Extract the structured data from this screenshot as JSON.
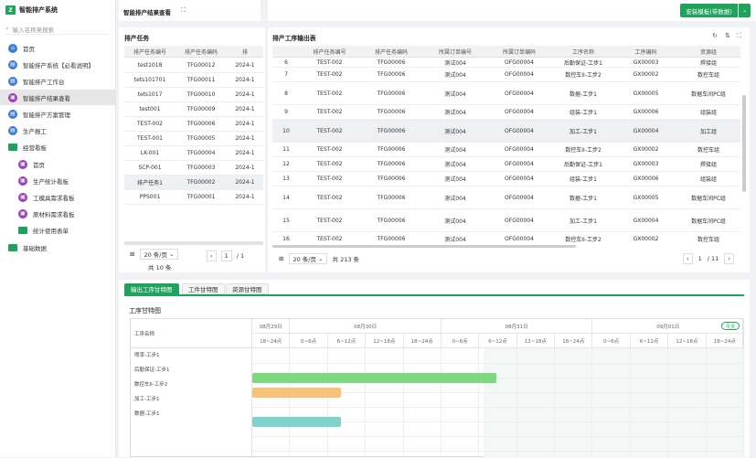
{
  "app": {
    "title": "智能排产系统"
  },
  "sidebar": {
    "search_placeholder": "输入名称来搜索",
    "items": [
      {
        "label": "首页"
      },
      {
        "label": "智能排产系统【必看说明】"
      },
      {
        "label": "智能排产工作台"
      },
      {
        "label": "智能排产结果查看"
      },
      {
        "label": "智能排产方案管理"
      },
      {
        "label": "生产报工"
      },
      {
        "label": "经营看板"
      },
      {
        "label": "首页"
      },
      {
        "label": "生产统计看板"
      },
      {
        "label": "工模具需求看板"
      },
      {
        "label": "原材料需求看板"
      },
      {
        "label": "统计使用表单"
      },
      {
        "label": "基础数据"
      }
    ]
  },
  "header": {
    "page_title": "智能排产结果查看",
    "save_button": "安装模板(带数据)"
  },
  "colors": {
    "accent": "#1fa35c",
    "bar_green": "#7dd87f",
    "bar_orange": "#f6c27a",
    "bar_teal": "#7fd3cc"
  },
  "task_panel": {
    "title": "排产任务",
    "columns": [
      "排产任务编号",
      "排产任务编码",
      "排"
    ],
    "rows": [
      [
        "test1018",
        "TFG00012",
        "2024-1"
      ],
      [
        "tets101701",
        "TFG00011",
        "2024-1"
      ],
      [
        "tets1017",
        "TFG00010",
        "2024-1"
      ],
      [
        "test001",
        "TFG00009",
        "2024-1"
      ],
      [
        "TEST-002",
        "TFG00006",
        "2024-1"
      ],
      [
        "TEST-001",
        "TFG00005",
        "2024-1"
      ],
      [
        "LK-001",
        "TFG00004",
        "2024-1"
      ],
      [
        "SCP-001",
        "TFG00003",
        "2024-1"
      ],
      [
        "排产任务1",
        "TFG00002",
        "2024-1"
      ],
      [
        "PPS001",
        "TFG00001",
        "2024-1"
      ]
    ],
    "page_size": "20 条/页",
    "page": "1",
    "total_pages": "/ 1",
    "total": "共 10 条"
  },
  "output_panel": {
    "title": "排产工序输出表",
    "columns": [
      "",
      "排产任务编号",
      "排产任务编码",
      "所属订单编号",
      "所属订单编码",
      "工序名称",
      "工序编码",
      "资源组"
    ],
    "rows": [
      [
        "6",
        "TEST-002",
        "TFG00006",
        "测试004",
        "OFG00004",
        "后勤保证-工步1",
        "GX00003",
        "焊接组"
      ],
      [
        "7",
        "TEST-002",
        "TFG00006",
        "测试004",
        "OFG00004",
        "数控车II-工步2",
        "GX00002",
        "数控车组"
      ],
      [
        "8",
        "TEST-002",
        "TFG00006",
        "测试004",
        "OFG00004",
        "数据-工步1",
        "GX00005",
        "数据车间PC组"
      ],
      [
        "9",
        "TEST-002",
        "TFG00006",
        "测试004",
        "OFG00004",
        "组装-工步1",
        "GX00006",
        "组装组"
      ],
      [
        "10",
        "TEST-002",
        "TFG00006",
        "测试004",
        "OFG00004",
        "加工-工步1",
        "GX00004",
        "加工组"
      ],
      [
        "11",
        "TEST-002",
        "TFG00006",
        "测试004",
        "OFG00004",
        "数控车II-工步2",
        "GX00002",
        "数控车组"
      ],
      [
        "12",
        "TEST-002",
        "TFG00006",
        "测试004",
        "OFG00004",
        "后勤保证-工步1",
        "GX00003",
        "焊接组"
      ],
      [
        "13",
        "TEST-002",
        "TFG00006",
        "测试004",
        "OFG00004",
        "组装-工步1",
        "GX00006",
        "组装组"
      ],
      [
        "14",
        "TEST-002",
        "TFG00006",
        "测试004",
        "OFG00004",
        "数据-工步1",
        "GX00005",
        "数据车间PC组"
      ],
      [
        "15",
        "TEST-002",
        "TFG00006",
        "测试004",
        "OFG00004",
        "加工-工步1",
        "GX00004",
        "数据车间PC组"
      ],
      [
        "16",
        "TEST-002",
        "TFG00006",
        "测试004",
        "OFG00004",
        "数控车II-工步2",
        "GX00002",
        "数控车组"
      ]
    ],
    "page_size": "20 条/页",
    "total": "共 213 条",
    "page": "1",
    "total_pages": "/ 11"
  },
  "gantt_panel": {
    "tabs": [
      "输出工序甘特图",
      "工件甘特图",
      "资源甘特图"
    ],
    "title": "工序甘特图",
    "col_header": "工序名称",
    "today": "今天",
    "dates": [
      "08月29日",
      "08月30日",
      "08月31日",
      "09月01日"
    ],
    "slots": [
      "18~24点",
      "0~6点",
      "6~12点",
      "12~18点",
      "18~24点",
      "0~6点",
      "6~12点",
      "12~18点",
      "18~24点",
      "0~6点",
      "6~12点",
      "12~18点",
      "18~24点"
    ],
    "tasks": [
      {
        "name": "喷漆-工步1"
      },
      {
        "name": "后勤保证-工步1"
      },
      {
        "name": "数控车II-工步2"
      },
      {
        "name": "加工-工步1"
      },
      {
        "name": "数据-工步1"
      }
    ]
  }
}
